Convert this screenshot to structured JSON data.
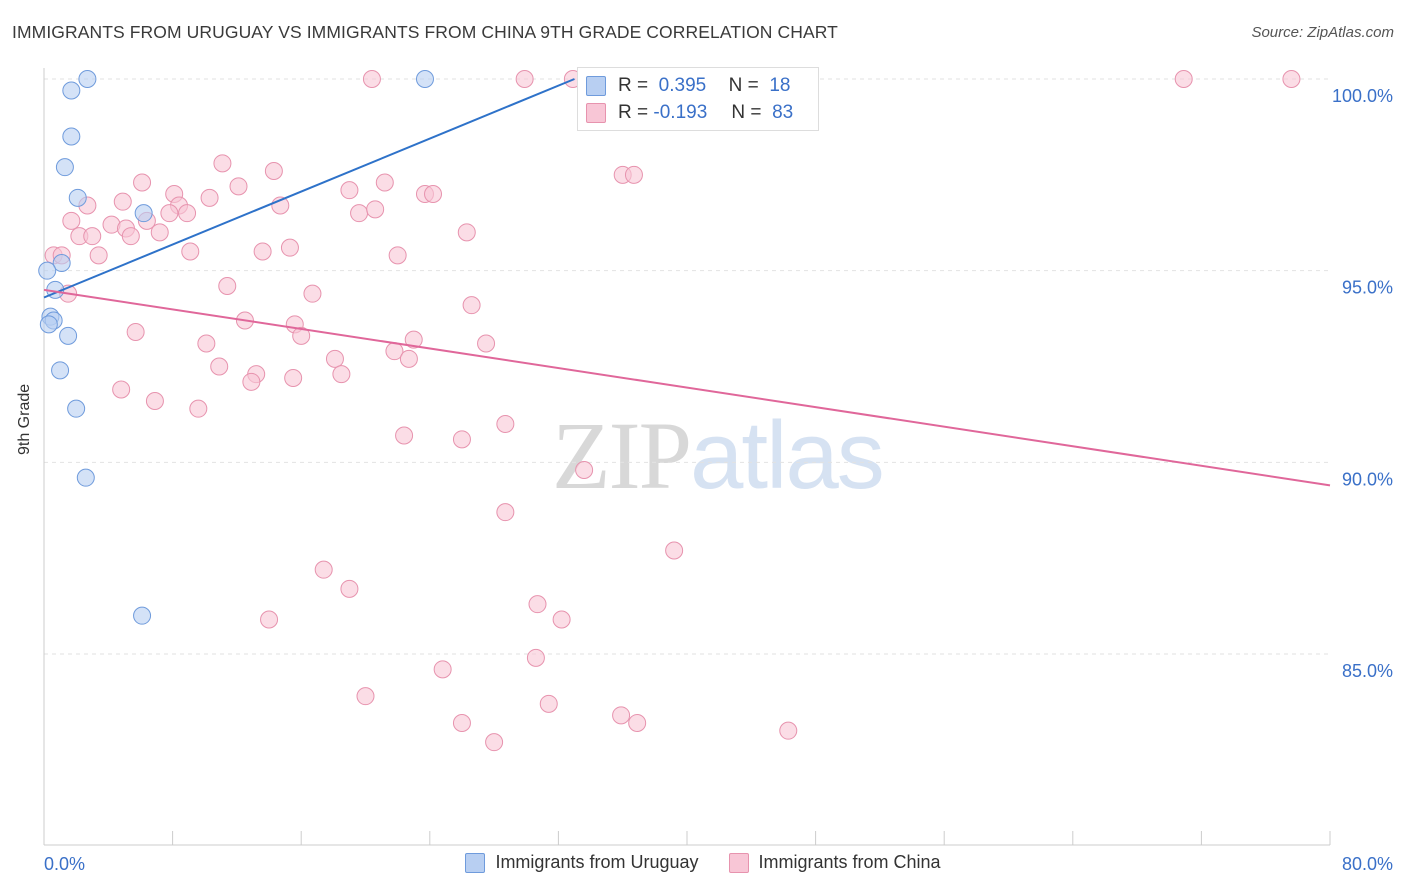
{
  "title": "IMMIGRANTS FROM URUGUAY VS IMMIGRANTS FROM CHINA 9TH GRADE CORRELATION CHART",
  "source": "Source: ZipAtlas.com",
  "watermark": {
    "part1": "ZIP",
    "part2": "atlas"
  },
  "legend": {
    "r_label": "R =",
    "n_label": "N =",
    "series": [
      {
        "name": "Immigrants from Uruguay",
        "r": "0.395",
        "n": "18"
      },
      {
        "name": "Immigrants from China",
        "r": "-0.193",
        "n": "83"
      }
    ]
  },
  "chart_data": {
    "type": "scatter",
    "title": "IMMIGRANTS FROM URUGUAY VS IMMIGRANTS FROM CHINA 9TH GRADE CORRELATION CHART",
    "xlabel": "",
    "ylabel": "9th Grade",
    "xlim": [
      0,
      80
    ],
    "ylim": [
      80.5,
      100.8
    ],
    "x_tick_labels": {
      "min": "0.0%",
      "max": "80.0%"
    },
    "y_ticks": [
      85,
      90,
      95,
      100
    ],
    "y_tick_labels": [
      "85.0%",
      "90.0%",
      "95.0%",
      "100.0%"
    ],
    "colors": {
      "uruguay_fill": "#b8cff2",
      "uruguay_stroke": "#6f9bdc",
      "uruguay_line": "#2e72c9",
      "china_fill": "#f8c6d6",
      "china_stroke": "#e793ae",
      "china_line": "#e0679a",
      "axis_label": "#3a70c8"
    },
    "series": [
      {
        "name": "Immigrants from Uruguay",
        "trend": {
          "x": [
            0,
            33.0
          ],
          "y": [
            94.3,
            100.0
          ]
        },
        "points": [
          {
            "x": 2.7,
            "y": 100.0
          },
          {
            "x": 1.7,
            "y": 99.7
          },
          {
            "x": 1.7,
            "y": 98.5
          },
          {
            "x": 1.3,
            "y": 97.7
          },
          {
            "x": 2.1,
            "y": 96.9
          },
          {
            "x": 6.2,
            "y": 96.5
          },
          {
            "x": 1.1,
            "y": 95.2
          },
          {
            "x": 0.7,
            "y": 94.5
          },
          {
            "x": 0.4,
            "y": 93.8
          },
          {
            "x": 0.6,
            "y": 93.7
          },
          {
            "x": 0.3,
            "y": 93.6
          },
          {
            "x": 1.5,
            "y": 93.3
          },
          {
            "x": 1.0,
            "y": 92.4
          },
          {
            "x": 2.0,
            "y": 91.4
          },
          {
            "x": 2.6,
            "y": 89.6
          },
          {
            "x": 6.1,
            "y": 86.0
          },
          {
            "x": 23.7,
            "y": 100.0
          },
          {
            "x": 0.2,
            "y": 95.0
          }
        ]
      },
      {
        "name": "Immigrants from China",
        "trend": {
          "x": [
            0,
            80
          ],
          "y": [
            94.5,
            89.4
          ]
        },
        "points": [
          {
            "x": 20.4,
            "y": 100.0
          },
          {
            "x": 29.9,
            "y": 100.0
          },
          {
            "x": 32.9,
            "y": 100.0
          },
          {
            "x": 70.9,
            "y": 100.0
          },
          {
            "x": 77.6,
            "y": 100.0
          },
          {
            "x": 11.1,
            "y": 97.8
          },
          {
            "x": 14.3,
            "y": 97.6
          },
          {
            "x": 36.0,
            "y": 97.5
          },
          {
            "x": 6.1,
            "y": 97.3
          },
          {
            "x": 12.1,
            "y": 97.2
          },
          {
            "x": 19.0,
            "y": 97.1
          },
          {
            "x": 21.2,
            "y": 97.3
          },
          {
            "x": 23.7,
            "y": 97.0
          },
          {
            "x": 8.1,
            "y": 97.0
          },
          {
            "x": 10.3,
            "y": 96.9
          },
          {
            "x": 4.9,
            "y": 96.8
          },
          {
            "x": 8.4,
            "y": 96.7
          },
          {
            "x": 14.7,
            "y": 96.7
          },
          {
            "x": 2.7,
            "y": 96.7
          },
          {
            "x": 19.6,
            "y": 96.5
          },
          {
            "x": 7.8,
            "y": 96.5
          },
          {
            "x": 8.9,
            "y": 96.5
          },
          {
            "x": 1.7,
            "y": 96.3
          },
          {
            "x": 6.4,
            "y": 96.3
          },
          {
            "x": 4.2,
            "y": 96.2
          },
          {
            "x": 5.1,
            "y": 96.1
          },
          {
            "x": 7.2,
            "y": 96.0
          },
          {
            "x": 26.3,
            "y": 96.0
          },
          {
            "x": 2.2,
            "y": 95.9
          },
          {
            "x": 3.0,
            "y": 95.9
          },
          {
            "x": 5.4,
            "y": 95.9
          },
          {
            "x": 0.6,
            "y": 95.4
          },
          {
            "x": 1.1,
            "y": 95.4
          },
          {
            "x": 3.4,
            "y": 95.4
          },
          {
            "x": 9.1,
            "y": 95.5
          },
          {
            "x": 13.6,
            "y": 95.5
          },
          {
            "x": 15.3,
            "y": 95.6
          },
          {
            "x": 22.0,
            "y": 95.4
          },
          {
            "x": 11.4,
            "y": 94.6
          },
          {
            "x": 16.7,
            "y": 94.4
          },
          {
            "x": 1.5,
            "y": 94.4
          },
          {
            "x": 26.6,
            "y": 94.1
          },
          {
            "x": 12.5,
            "y": 93.7
          },
          {
            "x": 15.6,
            "y": 93.6
          },
          {
            "x": 5.7,
            "y": 93.4
          },
          {
            "x": 16.0,
            "y": 93.3
          },
          {
            "x": 10.1,
            "y": 93.1
          },
          {
            "x": 23.0,
            "y": 93.2
          },
          {
            "x": 27.5,
            "y": 93.1
          },
          {
            "x": 21.8,
            "y": 92.9
          },
          {
            "x": 18.1,
            "y": 92.7
          },
          {
            "x": 22.7,
            "y": 92.7
          },
          {
            "x": 10.9,
            "y": 92.5
          },
          {
            "x": 13.2,
            "y": 92.3
          },
          {
            "x": 18.5,
            "y": 92.3
          },
          {
            "x": 15.5,
            "y": 92.2
          },
          {
            "x": 12.9,
            "y": 92.1
          },
          {
            "x": 4.8,
            "y": 91.9
          },
          {
            "x": 6.9,
            "y": 91.6
          },
          {
            "x": 9.6,
            "y": 91.4
          },
          {
            "x": 28.7,
            "y": 91.0
          },
          {
            "x": 22.4,
            "y": 90.7
          },
          {
            "x": 26.0,
            "y": 90.6
          },
          {
            "x": 33.6,
            "y": 89.8
          },
          {
            "x": 28.7,
            "y": 88.7
          },
          {
            "x": 39.2,
            "y": 87.7
          },
          {
            "x": 17.4,
            "y": 87.2
          },
          {
            "x": 19.0,
            "y": 86.7
          },
          {
            "x": 30.7,
            "y": 86.3
          },
          {
            "x": 32.2,
            "y": 85.9
          },
          {
            "x": 14.0,
            "y": 85.9
          },
          {
            "x": 30.6,
            "y": 84.9
          },
          {
            "x": 24.8,
            "y": 84.6
          },
          {
            "x": 20.0,
            "y": 83.9
          },
          {
            "x": 31.4,
            "y": 83.7
          },
          {
            "x": 35.9,
            "y": 83.4
          },
          {
            "x": 26.0,
            "y": 83.2
          },
          {
            "x": 36.9,
            "y": 83.2
          },
          {
            "x": 46.3,
            "y": 83.0
          },
          {
            "x": 28.0,
            "y": 82.7
          },
          {
            "x": 36.7,
            "y": 97.5
          },
          {
            "x": 24.2,
            "y": 97.0
          },
          {
            "x": 20.6,
            "y": 96.6
          }
        ]
      }
    ]
  }
}
